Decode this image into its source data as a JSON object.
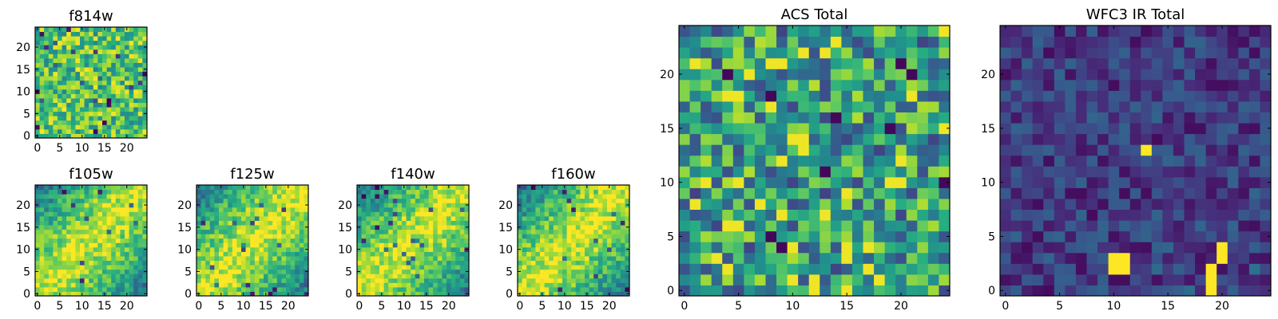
{
  "chart_data": [
    {
      "id": "f814w",
      "type": "heatmap",
      "title": "f814w",
      "grid_size": [
        25,
        25
      ],
      "xlim": [
        -0.5,
        24.5
      ],
      "ylim": [
        -0.5,
        24.5
      ],
      "xticks": [
        0,
        5,
        10,
        15,
        20
      ],
      "yticks": [
        0,
        5,
        10,
        15,
        20
      ],
      "xticklabels": [
        "0",
        "5",
        "10",
        "15",
        "20"
      ],
      "yticklabels": [
        "0",
        "5",
        "10",
        "15",
        "20"
      ],
      "colormap": "viridis",
      "pattern": "uniform-noise",
      "value_range": [
        0,
        1
      ]
    },
    {
      "id": "f105w",
      "type": "heatmap",
      "title": "f105w",
      "grid_size": [
        25,
        25
      ],
      "xlim": [
        -0.5,
        24.5
      ],
      "ylim": [
        -0.5,
        24.5
      ],
      "xticks": [
        0,
        5,
        10,
        15,
        20
      ],
      "yticks": [
        0,
        5,
        10,
        15,
        20
      ],
      "xticklabels": [
        "0",
        "5",
        "10",
        "15",
        "20"
      ],
      "yticklabels": [
        "0",
        "5",
        "10",
        "15",
        "20"
      ],
      "colormap": "viridis",
      "pattern": "smooth-diagonal-band",
      "value_range": [
        0,
        1
      ]
    },
    {
      "id": "f125w",
      "type": "heatmap",
      "title": "f125w",
      "grid_size": [
        25,
        25
      ],
      "xlim": [
        -0.5,
        24.5
      ],
      "ylim": [
        -0.5,
        24.5
      ],
      "xticks": [
        0,
        5,
        10,
        15,
        20
      ],
      "yticks": [
        0,
        5,
        10,
        15,
        20
      ],
      "xticklabels": [
        "0",
        "5",
        "10",
        "15",
        "20"
      ],
      "yticklabels": [
        "0",
        "5",
        "10",
        "15",
        "20"
      ],
      "colormap": "viridis",
      "pattern": "smooth-diagonal-band",
      "value_range": [
        0,
        1
      ]
    },
    {
      "id": "f140w",
      "type": "heatmap",
      "title": "f140w",
      "grid_size": [
        25,
        25
      ],
      "xlim": [
        -0.5,
        24.5
      ],
      "ylim": [
        -0.5,
        24.5
      ],
      "xticks": [
        0,
        5,
        10,
        15,
        20
      ],
      "yticks": [
        0,
        5,
        10,
        15,
        20
      ],
      "xticklabels": [
        "0",
        "5",
        "10",
        "15",
        "20"
      ],
      "yticklabels": [
        "0",
        "5",
        "10",
        "15",
        "20"
      ],
      "colormap": "viridis",
      "pattern": "smooth-diagonal-band",
      "value_range": [
        0,
        1
      ]
    },
    {
      "id": "f160w",
      "type": "heatmap",
      "title": "f160w",
      "grid_size": [
        25,
        25
      ],
      "xlim": [
        -0.5,
        24.5
      ],
      "ylim": [
        -0.5,
        24.5
      ],
      "xticks": [
        0,
        5,
        10,
        15,
        20
      ],
      "yticks": [
        0,
        5,
        10,
        15,
        20
      ],
      "xticklabels": [
        "0",
        "5",
        "10",
        "15",
        "20"
      ],
      "yticklabels": [
        "0",
        "5",
        "10",
        "15",
        "20"
      ],
      "colormap": "viridis",
      "pattern": "smooth-diagonal-band",
      "value_range": [
        0,
        1
      ]
    },
    {
      "id": "acs_total",
      "type": "heatmap",
      "title": "ACS Total",
      "grid_size": [
        25,
        25
      ],
      "xlim": [
        -0.5,
        24.5
      ],
      "ylim": [
        -0.5,
        24.5
      ],
      "xticks": [
        0,
        5,
        10,
        15,
        20
      ],
      "yticks": [
        0,
        5,
        10,
        15,
        20
      ],
      "xticklabels": [
        "0",
        "5",
        "10",
        "15",
        "20"
      ],
      "yticklabels": [
        "0",
        "5",
        "10",
        "15",
        "20"
      ],
      "colormap": "viridis",
      "pattern": "high-noise",
      "value_range": [
        0,
        1
      ]
    },
    {
      "id": "wfc3_ir_total",
      "type": "heatmap",
      "title": "WFC3 IR Total",
      "grid_size": [
        25,
        25
      ],
      "xlim": [
        -0.5,
        24.5
      ],
      "ylim": [
        -0.5,
        24.5
      ],
      "xticks": [
        0,
        5,
        10,
        15,
        20
      ],
      "yticks": [
        0,
        5,
        10,
        15,
        20
      ],
      "xticklabels": [
        "0",
        "5",
        "10",
        "15",
        "20"
      ],
      "yticklabels": [
        "0",
        "5",
        "10",
        "15",
        "20"
      ],
      "colormap": "viridis",
      "pattern": "low-noise-with-hot-pixels",
      "value_range": [
        0,
        1
      ],
      "hot_pixels": [
        {
          "x": 10,
          "y": 2
        },
        {
          "x": 10,
          "y": 3
        },
        {
          "x": 11,
          "y": 2
        },
        {
          "x": 11,
          "y": 3
        },
        {
          "x": 19,
          "y": 0
        },
        {
          "x": 19,
          "y": 1
        },
        {
          "x": 19,
          "y": 2
        },
        {
          "x": 20,
          "y": 3
        },
        {
          "x": 20,
          "y": 4
        },
        {
          "x": 13,
          "y": 13
        }
      ]
    }
  ]
}
